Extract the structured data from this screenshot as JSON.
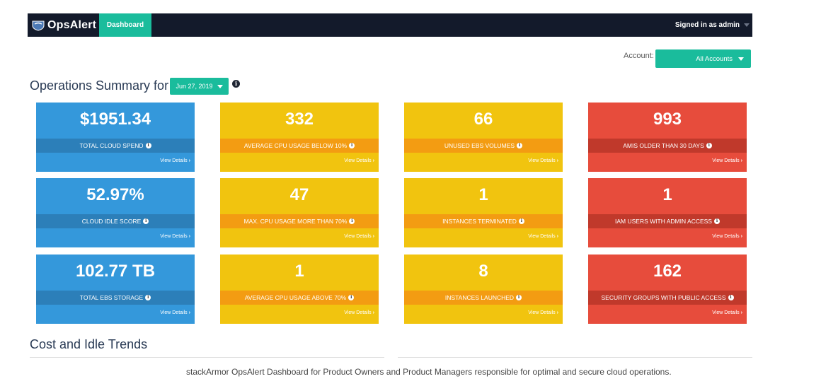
{
  "navbar": {
    "brand": "OpsAlert",
    "tab_dashboard": "Dashboard",
    "signed_in": "Signed in as admin"
  },
  "account": {
    "label": "Account:",
    "selected": "All Accounts"
  },
  "summary": {
    "title": "Operations Summary for",
    "date": "Jun 27, 2019"
  },
  "tiles": [
    {
      "value": "$1951.34",
      "label": "TOTAL CLOUD SPEND",
      "link": "View Details",
      "color": "#3498db"
    },
    {
      "value": "332",
      "label": "AVERAGE CPU USAGE BELOW 10%",
      "link": "View Details",
      "color": "#f1c40f"
    },
    {
      "value": "66",
      "label": "UNUSED EBS VOLUMES",
      "link": "View Details",
      "color": "#f1c40f"
    },
    {
      "value": "993",
      "label": "AMIS OLDER THAN 30 DAYS",
      "link": "View Details",
      "color": "#e74c3c"
    },
    {
      "value": "52.97%",
      "label": "CLOUD IDLE SCORE",
      "link": "View Details",
      "color": "#3498db"
    },
    {
      "value": "47",
      "label": "MAX. CPU USAGE MORE THAN 70%",
      "link": "View Details",
      "color": "#f1c40f"
    },
    {
      "value": "1",
      "label": "INSTANCES TERMINATED",
      "link": "View Details",
      "color": "#f1c40f"
    },
    {
      "value": "1",
      "label": "IAM USERS WITH ADMIN ACCESS",
      "link": "View Details",
      "color": "#e74c3c"
    },
    {
      "value": "102.77 TB",
      "label": "TOTAL EBS STORAGE",
      "link": "View Details",
      "color": "#3498db"
    },
    {
      "value": "1",
      "label": "AVERAGE CPU USAGE ABOVE 70%",
      "link": "View Details",
      "color": "#f1c40f"
    },
    {
      "value": "8",
      "label": "INSTANCES LAUNCHED",
      "link": "View Details",
      "color": "#f1c40f"
    },
    {
      "value": "162",
      "label": "SECURITY GROUPS WITH PUBLIC ACCESS",
      "link": "View Details",
      "color": "#e74c3c"
    }
  ],
  "trends": {
    "title": "Cost and Idle Trends"
  },
  "caption": "stackArmor OpsAlert Dashboard for Product Owners and Product Managers responsible for optimal and secure cloud operations."
}
